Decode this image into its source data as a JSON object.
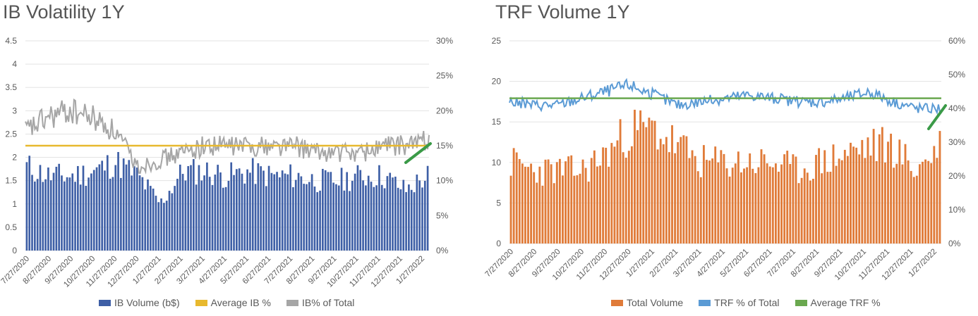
{
  "charts": [
    {
      "title": "IB Volatility 1Y",
      "left_axis": {
        "ticks": [
          "4.5",
          "4",
          "3.5",
          "3",
          "2.5",
          "2",
          "1.5",
          "1",
          "0.5",
          "0"
        ],
        "min": 0,
        "max": 4.5
      },
      "right_axis": {
        "ticks": [
          "30%",
          "25%",
          "20%",
          "15%",
          "10%",
          "5%",
          "0%"
        ],
        "min": 0,
        "max": 30
      },
      "x_labels": [
        "7/27/2020",
        "8/27/2020",
        "9/27/2020",
        "10/27/2020",
        "11/27/2020",
        "12/27/2020",
        "1/27/2021",
        "2/27/2021",
        "3/27/2021",
        "4/27/2021",
        "5/27/2021",
        "6/27/2021",
        "7/27/2021",
        "8/27/2021",
        "9/27/2021",
        "10/27/2021",
        "11/27/2021",
        "12/27/2021",
        "1/27/2022"
      ],
      "legend": [
        {
          "label": "IB Volume (b$)",
          "color": "#3e5fa6"
        },
        {
          "label": "Average IB %",
          "color": "#e8b92e"
        },
        {
          "label": "IB% of Total",
          "color": "#a6a6a6"
        }
      ]
    },
    {
      "title": "TRF Volume 1Y",
      "left_axis": {
        "ticks": [
          "25",
          "20",
          "15",
          "10",
          "5",
          "0"
        ],
        "min": 0,
        "max": 25
      },
      "right_axis": {
        "ticks": [
          "60%",
          "50%",
          "40%",
          "30%",
          "20%",
          "10%",
          "0%"
        ],
        "min": 0,
        "max": 60
      },
      "x_labels": [
        "7/27/2020",
        "8/27/2020",
        "9/27/2020",
        "10/27/2020",
        "11/27/2020",
        "12/27/2020",
        "1/27/2021",
        "2/27/2021",
        "3/27/2021",
        "4/27/2021",
        "5/27/2021",
        "6/27/2021",
        "7/27/2021",
        "8/27/2021",
        "9/27/2021",
        "10/27/2021",
        "11/27/2021",
        "12/27/2021",
        "1/27/2022"
      ],
      "legend": [
        {
          "label": "Total Volume",
          "color": "#e07b39"
        },
        {
          "label": "TRF % of Total",
          "color": "#5b9bd5"
        },
        {
          "label": "Average TRF %",
          "color": "#6aa84f"
        }
      ]
    }
  ],
  "chart_data": [
    {
      "type": "bar",
      "title": "IB Volatility 1Y",
      "x_categories_monthly": [
        "7/27/2020",
        "8/27/2020",
        "9/27/2020",
        "10/27/2020",
        "11/27/2020",
        "12/27/2020",
        "1/27/2021",
        "2/27/2021",
        "3/27/2021",
        "4/27/2021",
        "5/27/2021",
        "6/27/2021",
        "7/27/2021",
        "8/27/2021",
        "9/27/2021",
        "10/27/2021",
        "11/27/2021",
        "12/27/2021",
        "1/27/2022"
      ],
      "ylim": [
        0,
        4.5
      ],
      "y2lim": [
        0,
        30
      ],
      "series": [
        {
          "name": "IB Volume (b$)",
          "type": "bar",
          "axis": "left",
          "values": [
            1.8,
            1.6,
            1.6,
            1.7,
            1.9,
            1.6,
            1.0,
            1.7,
            1.7,
            1.6,
            1.7,
            1.6,
            1.6,
            1.5,
            1.5,
            1.6,
            1.6,
            1.3,
            1.6
          ]
        },
        {
          "name": "IB% of Total",
          "type": "line",
          "axis": "right",
          "values": [
            17,
            19,
            20,
            19,
            17,
            12,
            13,
            14,
            15,
            15,
            15,
            15,
            15,
            14,
            14,
            14,
            15,
            15,
            16
          ]
        },
        {
          "name": "Average IB %",
          "type": "line",
          "axis": "right",
          "values": [
            15,
            15,
            15,
            15,
            15,
            15,
            15,
            15,
            15,
            15,
            15,
            15,
            15,
            15,
            15,
            15,
            15,
            15,
            15
          ]
        }
      ]
    },
    {
      "type": "bar",
      "title": "TRF Volume 1Y",
      "x_categories_monthly": [
        "7/27/2020",
        "8/27/2020",
        "9/27/2020",
        "10/27/2020",
        "11/27/2020",
        "12/27/2020",
        "1/27/2021",
        "2/27/2021",
        "3/27/2021",
        "4/27/2021",
        "5/27/2021",
        "6/27/2021",
        "7/27/2021",
        "8/27/2021",
        "9/27/2021",
        "10/27/2021",
        "11/27/2021",
        "12/27/2021",
        "1/27/2022"
      ],
      "ylim": [
        0,
        25
      ],
      "y2lim": [
        0,
        60
      ],
      "series": [
        {
          "name": "Total Volume",
          "type": "bar",
          "axis": "left",
          "values": [
            10,
            9,
            9,
            9,
            11,
            14,
            14,
            12,
            10,
            10,
            10,
            10,
            9,
            10,
            11,
            12,
            12,
            9,
            12
          ]
        },
        {
          "name": "TRF % of Total",
          "type": "line",
          "axis": "right",
          "values": [
            42,
            41,
            41,
            43,
            45,
            47,
            44,
            41,
            42,
            43,
            44,
            43,
            42,
            42,
            43,
            45,
            42,
            40,
            40
          ]
        },
        {
          "name": "Average TRF %",
          "type": "line",
          "axis": "right",
          "values": [
            43,
            43,
            43,
            43,
            43,
            43,
            43,
            43,
            43,
            43,
            43,
            43,
            43,
            43,
            43,
            43,
            43,
            43,
            43
          ]
        }
      ]
    }
  ]
}
